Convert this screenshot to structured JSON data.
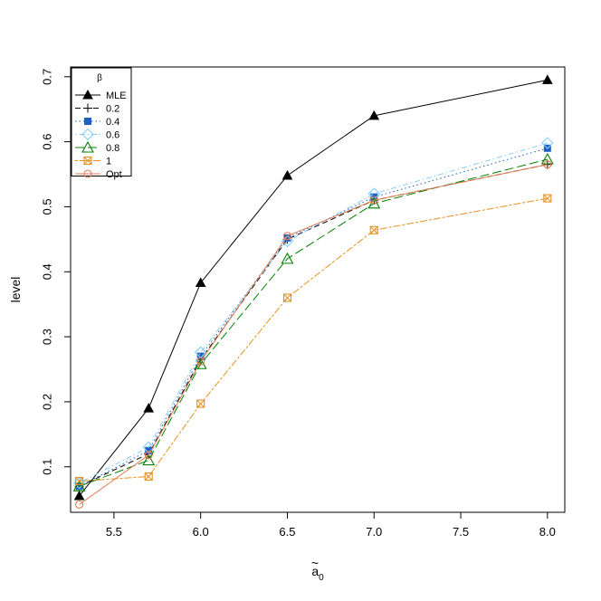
{
  "chart_data": {
    "type": "line",
    "xlabel": "ã₀",
    "ylabel": "level",
    "xlim": [
      5.25,
      8.1
    ],
    "ylim": [
      0.03,
      0.715
    ],
    "xticks": [
      "5.5",
      "6.0",
      "6.5",
      "7.0",
      "7.5",
      "8.0"
    ],
    "yticks": [
      "0.1",
      "0.2",
      "0.3",
      "0.4",
      "0.5",
      "0.6",
      "0.7"
    ],
    "x": [
      5.3,
      5.7,
      6.0,
      6.5,
      7.0,
      8.0
    ],
    "legend": {
      "title": "β",
      "position": "top-left"
    },
    "series": [
      {
        "name": "MLE",
        "color": "#000000",
        "marker": "triangle-filled",
        "dash": "solid",
        "values": [
          0.055,
          0.19,
          0.383,
          0.548,
          0.64,
          0.695
        ]
      },
      {
        "name": "0.2",
        "color": "#000000",
        "marker": "plus",
        "dash": "dashed",
        "values": [
          0.07,
          0.12,
          0.265,
          0.45,
          0.51,
          0.565
        ]
      },
      {
        "name": "0.4",
        "color": "#1f5fbf",
        "marker": "square-filled",
        "dash": "dotted",
        "values": [
          0.07,
          0.125,
          0.27,
          0.452,
          0.515,
          0.59
        ]
      },
      {
        "name": "0.6",
        "color": "#87cefa",
        "marker": "diamond-open",
        "dash": "dotdash",
        "values": [
          0.075,
          0.13,
          0.276,
          0.447,
          0.52,
          0.598
        ]
      },
      {
        "name": "0.8",
        "color": "#008000",
        "marker": "triangle-open",
        "dash": "longdash",
        "values": [
          0.07,
          0.11,
          0.258,
          0.42,
          0.505,
          0.573
        ]
      },
      {
        "name": "1",
        "color": "#e69121",
        "marker": "boxed-x",
        "dash": "twodash",
        "values": [
          0.078,
          0.085,
          0.197,
          0.36,
          0.464,
          0.513
        ]
      },
      {
        "name": "Opt",
        "color": "#e07b50",
        "marker": "circle-open",
        "dash": "solid",
        "values": [
          0.042,
          0.118,
          0.262,
          0.455,
          0.51,
          0.565
        ]
      }
    ]
  }
}
